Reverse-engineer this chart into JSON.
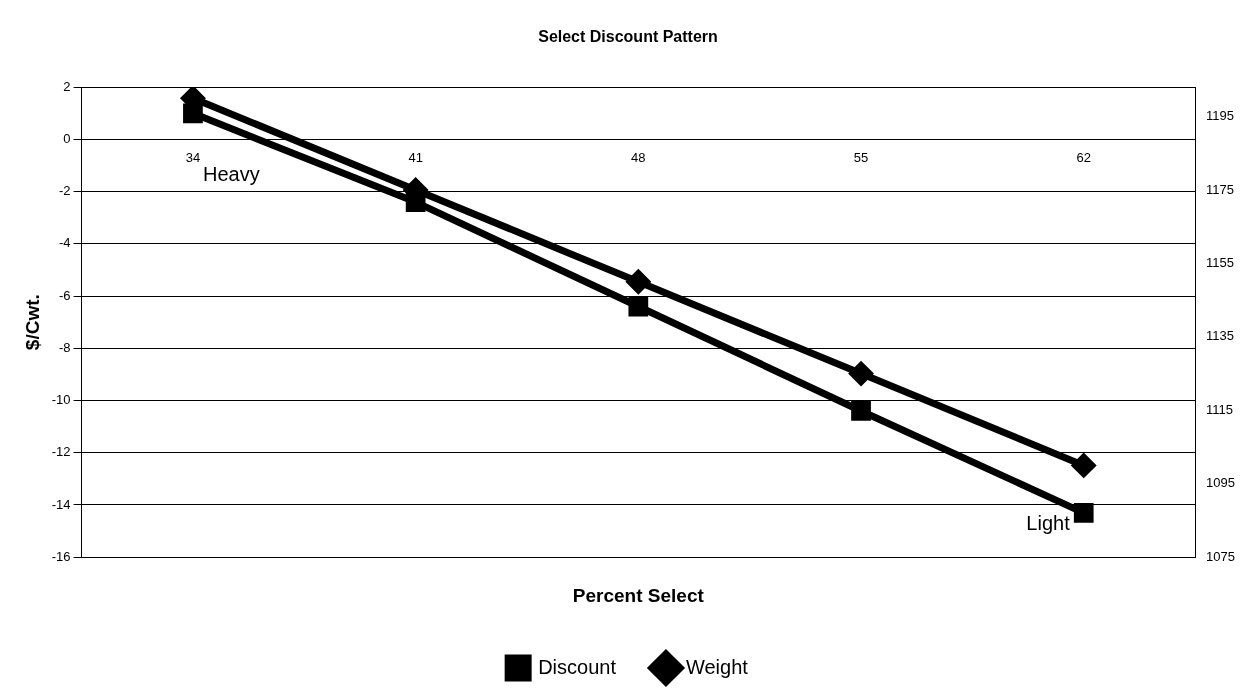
{
  "chart_data": {
    "type": "line",
    "title": "Select Discount Pattern",
    "xlabel": "Percent Select",
    "ylabel": "$/Cwt.",
    "categories": [
      "34",
      "41",
      "48",
      "55",
      "62"
    ],
    "series": [
      {
        "name": "Discount",
        "color": "#000000",
        "marker": "square",
        "values": [
          1,
          -2.4,
          -6.4,
          -10.4,
          -14.3
        ]
      },
      {
        "name": "Weight",
        "color": "#000000",
        "marker": "diamond",
        "axis": "y2",
        "values": [
          1200,
          1175,
          1150,
          1125,
          1100
        ]
      }
    ],
    "ylim": [
      -16,
      2
    ],
    "yticks": [
      -16,
      -14,
      -12,
      -10,
      -8,
      -6,
      -4,
      -2,
      0,
      2
    ],
    "y2lim": [
      1075,
      1203
    ],
    "y2ticks": [
      1075,
      1095,
      1115,
      1135,
      1155,
      1175,
      1195
    ],
    "grid": "y",
    "legend": "bottom",
    "line_style": "solid",
    "annotations": [
      "Heavy",
      "Light"
    ]
  }
}
